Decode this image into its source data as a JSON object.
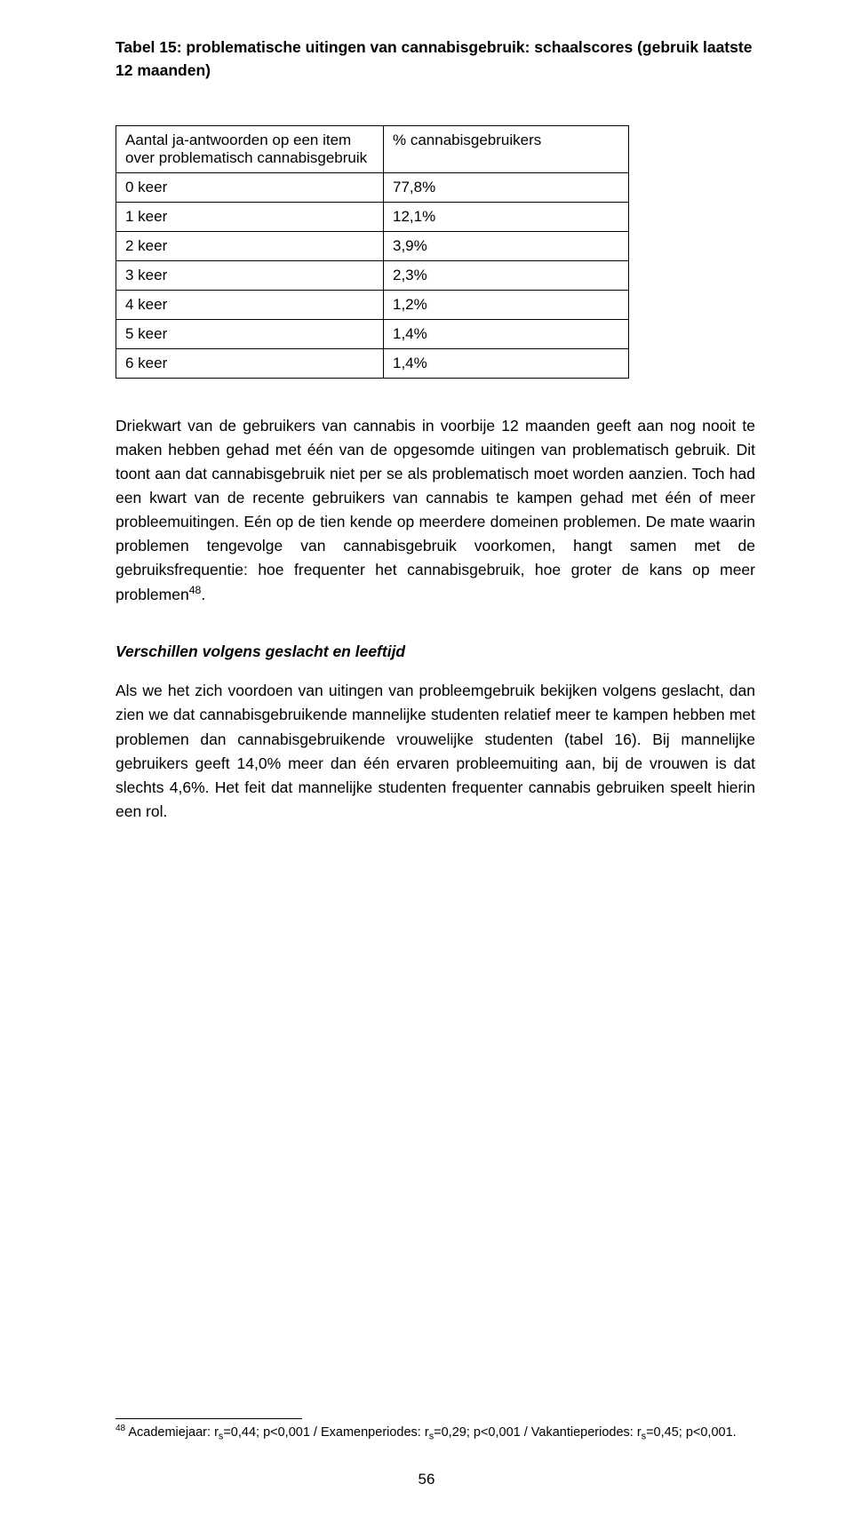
{
  "title": "Tabel 15: problematische uitingen van cannabisgebruik: schaalscores (gebruik laatste 12 maanden)",
  "table": {
    "header": {
      "col1": "Aantal ja-antwoorden op een item over problematisch cannabisgebruik",
      "col2": "%  cannabisgebruikers"
    },
    "rows": [
      {
        "label": "0 keer",
        "value": "77,8%"
      },
      {
        "label": "1 keer",
        "value": "12,1%"
      },
      {
        "label": "2 keer",
        "value": "3,9%"
      },
      {
        "label": "3 keer",
        "value": "2,3%"
      },
      {
        "label": "4 keer",
        "value": "1,2%"
      },
      {
        "label": "5 keer",
        "value": "1,4%"
      },
      {
        "label": "6 keer",
        "value": "1,4%"
      }
    ]
  },
  "para1_a": "Driekwart van de gebruikers van cannabis in voorbije 12 maanden geeft aan nog nooit te maken hebben gehad met één van de opgesomde uitingen van problematisch gebruik. Dit toont aan dat cannabisgebruik niet per se als problematisch moet worden aanzien. Toch had een kwart van de recente gebruikers van cannabis te kampen gehad met één of meer probleemuitingen. Eén op de tien kende op meerdere domeinen problemen. De mate waarin problemen tengevolge van cannabisgebruik voorkomen, hangt samen met de gebruiksfrequentie: hoe frequenter het cannabisgebruik, hoe groter de kans op meer problemen",
  "para1_sup": "48",
  "para1_b": ".",
  "subheading": "Verschillen volgens geslacht en leeftijd",
  "para2": "Als we het zich voordoen van uitingen van probleemgebruik bekijken volgens geslacht, dan zien we dat cannabisgebruikende mannelijke studenten relatief meer te kampen hebben met problemen dan cannabisgebruikende vrouwelijke studenten (tabel 16). Bij mannelijke gebruikers geeft 14,0% meer dan één ervaren probleemuiting aan, bij de vrouwen is dat slechts 4,6%. Het feit dat mannelijke studenten frequenter cannabis gebruiken speelt hierin een rol.",
  "footnote": {
    "num": "48",
    "seg1": " Academiejaar: r",
    "sub1": "s",
    "seg2": "=0,44; p<0,001 / Examenperiodes: r",
    "sub2": "s",
    "seg3": "=0,29; p<0,001 / Vakantieperiodes: r",
    "sub3": "s",
    "seg4": "=0,45; p<0,001."
  },
  "pagenum": "56"
}
